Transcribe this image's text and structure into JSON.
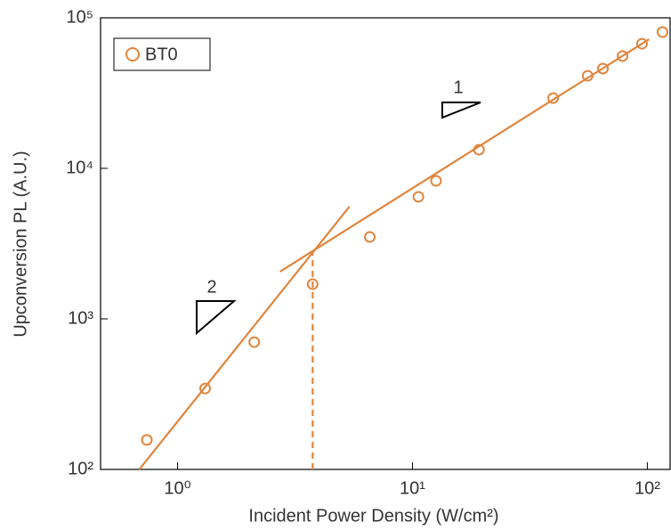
{
  "chart_data": {
    "type": "scatter",
    "xlabel": "Incident Power Density (W/cm²)",
    "ylabel": "Upconversion PL (A.U.)",
    "xscale": "log",
    "yscale": "log",
    "xlim": [
      0.47,
      125
    ],
    "ylim": [
      100,
      100000
    ],
    "xticks": [
      {
        "value": 1,
        "label": "10⁰"
      },
      {
        "value": 10,
        "label": "10¹"
      },
      {
        "value": 100,
        "label": "10²"
      }
    ],
    "yticks": [
      {
        "value": 100,
        "label": "10²"
      },
      {
        "value": 1000,
        "label": "10³"
      },
      {
        "value": 10000,
        "label": "10⁴"
      },
      {
        "value": 100000,
        "label": "10⁵"
      }
    ],
    "legend": "upper left",
    "series": [
      {
        "name": "BT0",
        "color": "#e0853d",
        "x": [
          0.74,
          1.31,
          2.12,
          3.76,
          6.58,
          10.6,
          12.6,
          19.2,
          39.7,
          55.7,
          64.7,
          78.4,
          94.9,
          116
        ],
        "values": [
          157,
          345,
          701,
          1700,
          3500,
          6470,
          8260,
          13300,
          29300,
          41200,
          46000,
          55700,
          67300,
          80400
        ]
      }
    ],
    "fit_lines": [
      {
        "x": [
          0.687,
          5.39
        ],
        "values": [
          100,
          5570
        ]
      },
      {
        "x": [
          2.73,
          101.7
        ],
        "values": [
          2060,
          72100
        ]
      }
    ],
    "guide": {
      "x": [
        3.76,
        3.76
      ],
      "values": [
        100,
        2780
      ]
    },
    "annotations": [
      "1",
      "2"
    ]
  }
}
